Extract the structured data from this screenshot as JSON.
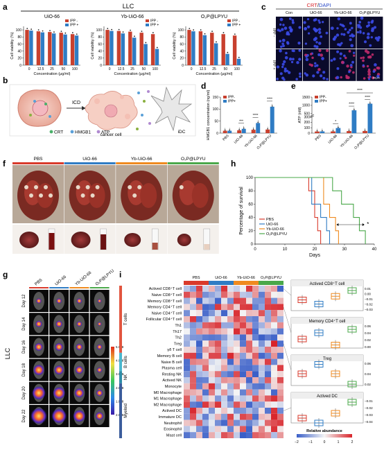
{
  "panel_letters": [
    "a",
    "b",
    "c",
    "d",
    "e",
    "f",
    "g",
    "h",
    "i"
  ],
  "colors": {
    "ipp_minus": "#c8402e",
    "ipp_plus": "#2f7cc4",
    "pbs": "#d93a2b",
    "uio": "#2f7cc4",
    "yb": "#ef8a1f",
    "lpyu": "#4aa84a"
  },
  "group_labels": [
    "PBS",
    "UiO-66",
    "Yb-UiO-66",
    "O₂P@LPYU"
  ],
  "panel_a": {
    "header": "LLC",
    "ylabel": "Cell viability (%)",
    "xlabel": "Concentration (μg/ml)",
    "legend": [
      "IPP -",
      "IPP +"
    ],
    "y_ticks": [
      "0",
      "20",
      "40",
      "60",
      "80",
      "100"
    ],
    "chart_data": [
      {
        "type": "bar",
        "title": "UiO-66",
        "categories": [
          "0",
          "12.5",
          "25",
          "50",
          "100"
        ],
        "ylim": [
          0,
          110
        ],
        "series": [
          {
            "name": "IPP -",
            "values": [
              100,
              96,
              94,
              92,
              88
            ]
          },
          {
            "name": "IPP +",
            "values": [
              98,
              93,
              90,
              87,
              84
            ]
          }
        ]
      },
      {
        "type": "bar",
        "title": "Yb-UiO-66",
        "categories": [
          "0",
          "12.5",
          "25",
          "50",
          "100"
        ],
        "ylim": [
          0,
          110
        ],
        "series": [
          {
            "name": "IPP -",
            "values": [
              100,
              97,
              95,
              92,
              88
            ]
          },
          {
            "name": "IPP +",
            "values": [
              97,
              90,
              78,
              60,
              46
            ]
          }
        ]
      },
      {
        "type": "bar",
        "title": "O₂P@LPYU",
        "categories": [
          "0",
          "12.5",
          "25",
          "50",
          "100"
        ],
        "ylim": [
          0,
          110
        ],
        "series": [
          {
            "name": "IPP -",
            "values": [
              100,
              96,
              92,
              88,
              84
            ]
          },
          {
            "name": "IPP +",
            "values": [
              96,
              85,
              62,
              32,
              18
            ]
          }
        ]
      }
    ]
  },
  "panel_b": {
    "icd": "ICD",
    "cancer_cell": "cancer cell",
    "idc": "iDC",
    "legend": [
      "CRT",
      "HMGB1",
      "ATP"
    ]
  },
  "panel_c": {
    "title_crt": "CRT",
    "title_sep": "/",
    "title_dapi": "DAPI",
    "columns": [
      "Con",
      "UiO-66",
      "Yb-UiO-66",
      "O₂P@LPYU"
    ],
    "rows": [
      "IPP -",
      "IPP +"
    ],
    "scale": "50μm"
  },
  "panel_d": {
    "ylabel": "HMGB1 concentration (ng/ml)",
    "legend": [
      "IPP-",
      "IPP+"
    ],
    "y_ticks": [
      "0",
      "50",
      "100",
      "150"
    ],
    "chart_data": {
      "type": "bar",
      "categories": [
        "PBS",
        "UiO-66",
        "Yb-UiO-66",
        "O₂P@LPYU"
      ],
      "ylim": [
        0,
        150
      ],
      "series": [
        {
          "name": "IPP-",
          "values": [
            10,
            12,
            14,
            15
          ]
        },
        {
          "name": "IPP+",
          "values": [
            10,
            18,
            42,
            110
          ]
        }
      ]
    },
    "sig": [
      "***",
      "****",
      "****"
    ]
  },
  "panel_e": {
    "ylabel": "ATP (nM)",
    "legend": [
      "IPP-",
      "IPP+"
    ],
    "y_ticks": [
      "0",
      "100",
      "200",
      "300",
      "500",
      "1000",
      "1500"
    ],
    "chart_data": {
      "type": "bar",
      "categories": [
        "PBS",
        "UiO-66",
        "Yb-UiO-66",
        "O₂P@LPYU"
      ],
      "ylim": [
        0,
        1500
      ],
      "series": [
        {
          "name": "IPP-",
          "values": [
            30,
            32,
            38,
            40
          ]
        },
        {
          "name": "IPP+",
          "values": [
            32,
            95,
            700,
            1100
          ]
        }
      ]
    },
    "sig": [
      "*",
      "****",
      "****",
      "****"
    ]
  },
  "panel_f": {
    "labels": [
      "PBS",
      "UiO-66",
      "Yb-UiO-66",
      "O₂P@LPYU"
    ]
  },
  "panel_g": {
    "side_label": "LLC",
    "columns": [
      "PBS",
      "UiO-66",
      "Yb-UiO-66",
      "O₂P@LPYU"
    ],
    "days": [
      "Day 12",
      "Day 14",
      "Day 16",
      "Day 18",
      "Day 20",
      "Day 22"
    ],
    "scale_ticks": [
      "5.0e8",
      "4.0e8",
      "3.0e8",
      "2.0e8",
      "1.0e8",
      "2.0e5"
    ]
  },
  "panel_h": {
    "ylabel": "Percentage of survival",
    "xlabel": "Days",
    "x_ticks": [
      "0",
      "10",
      "20",
      "30",
      "40"
    ],
    "y_ticks": [
      "0",
      "20",
      "40",
      "60",
      "80",
      "100"
    ],
    "sig": "*",
    "chart_data": {
      "type": "line",
      "xlim": [
        0,
        40
      ],
      "ylim": [
        0,
        100
      ],
      "series": [
        {
          "name": "PBS",
          "x": [
            0,
            18,
            18,
            20,
            20,
            21,
            21,
            22,
            22
          ],
          "y": [
            100,
            100,
            80,
            80,
            40,
            40,
            20,
            20,
            0
          ]
        },
        {
          "name": "UiO-66",
          "x": [
            0,
            19,
            19,
            22,
            22,
            24,
            24,
            25,
            25
          ],
          "y": [
            100,
            100,
            60,
            60,
            40,
            40,
            20,
            20,
            0
          ]
        },
        {
          "name": "Yb-UiO-66",
          "x": [
            0,
            23,
            23,
            25,
            25,
            27,
            27,
            28,
            28
          ],
          "y": [
            100,
            100,
            60,
            60,
            40,
            40,
            20,
            20,
            0
          ]
        },
        {
          "name": "O₂P@LPYU",
          "x": [
            0,
            26,
            26,
            29,
            29,
            33,
            33,
            35,
            35,
            37,
            37
          ],
          "y": [
            100,
            100,
            80,
            80,
            60,
            60,
            40,
            40,
            20,
            20,
            0
          ]
        }
      ]
    }
  },
  "panel_i": {
    "row_labels": [
      "Actived CD8⁺T cell",
      "Naive CD8⁺T cell",
      "Memory CD8⁺T cell",
      "Memory CD4⁺T cell",
      "Naive CD4⁺T cell",
      "Follicular CD4⁺T cell",
      "Th1",
      "Th17",
      "Th2",
      "Treg",
      "γδ T cell",
      "Memory B cell",
      "Naive B cell",
      "Plasma cell",
      "Resting NK",
      "Actived NK",
      "Monocyte",
      "M0 Macrophage",
      "M1 Macrophage",
      "M2 Macrophage",
      "Actived DC",
      "Immature DC",
      "Neutrophil",
      "Eosinophil",
      "Mast cell"
    ],
    "categories": [
      {
        "name": "T cells",
        "rows": 11,
        "color": "#e2553f"
      },
      {
        "name": "B cells",
        "rows": 3,
        "color": "#4bb8cf"
      },
      {
        "name": "NK",
        "rows": 2,
        "color": "#2f8ea8"
      },
      {
        "name": "Myeloid",
        "rows": 9,
        "color": "#3c5d9c"
      }
    ],
    "columns_per_group": 4,
    "legend_title": "Relative abundance",
    "legend_ticks": [
      "−2",
      "−1",
      "0",
      "1",
      "2"
    ],
    "boxplots": [
      {
        "title": "Actived CD8⁺T cell",
        "ticks": [
          "0.01",
          "0.00",
          "−0.01",
          "−0.02",
          "−0.03"
        ],
        "medians": [
          -0.012,
          -0.02,
          -0.005,
          0.006
        ]
      },
      {
        "title": "Memory CD4⁺T cell",
        "ticks": [
          "0.06",
          "0.04",
          "0.02",
          "0.00"
        ],
        "medians": [
          0.022,
          0.04,
          0.005,
          0.05
        ]
      },
      {
        "title": "Treg",
        "ticks": [
          "0.06",
          "0.04",
          "0.02"
        ],
        "medians": [
          0.04,
          0.058,
          0.04,
          0.02
        ]
      },
      {
        "title": "Actived DC",
        "ticks": [
          "−0.01",
          "−0.02",
          "−0.03",
          "−0.04"
        ],
        "medians": [
          -0.035,
          -0.042,
          -0.028,
          -0.012
        ]
      }
    ]
  }
}
